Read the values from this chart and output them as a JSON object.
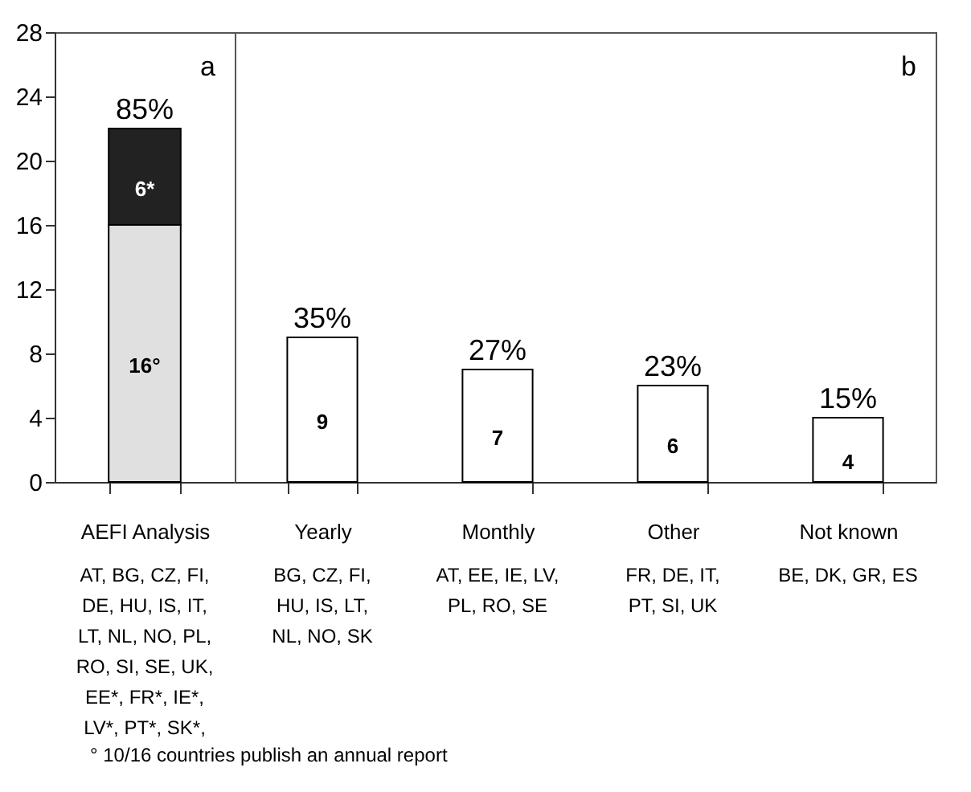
{
  "chart_data": [
    {
      "type": "bar",
      "stacked": true,
      "categories": [
        "AEFI Analysis"
      ],
      "series": [
        {
          "color": "#e0e0e0",
          "values": [
            16
          ],
          "value_labels": [
            "16°"
          ]
        },
        {
          "color": "#222222",
          "values": [
            6
          ],
          "value_labels": [
            "6*"
          ]
        }
      ],
      "ylim": [
        0,
        28
      ],
      "yticks": [
        0,
        4,
        8,
        12,
        16,
        20,
        24,
        28
      ],
      "annotations": [
        "a",
        "AT, BG, CZ, FI,\nDE, HU, IS, IT,\nLT, NL, NO, PL,\nRO, SI, SE, UK,\nEE*, FR*, IE*,\nLV*, PT*, SK*,",
        "° 10/16 countries publish an annual report",
        {
          "text": "85%",
          "x": "AEFI Analysis",
          "y": 22
        }
      ]
    },
    {
      "type": "bar",
      "categories": [
        "Yearly",
        "Monthly",
        "Other",
        "Not known"
      ],
      "values": [
        9,
        7,
        6,
        4
      ],
      "color": "#ffffff",
      "data_labels": true,
      "ylim": [
        0,
        28
      ],
      "tick_labels": "x",
      "annotations": [
        "b",
        "BG, CZ, FI,\nHU, IS, LT,\nNL, NO, SK",
        "AT, EE, IE, LV,\nPL, RO, SE",
        "FR, DE, IT,\nPT, SI, UK",
        "BE, DK, GR, ES",
        {
          "text": "35%",
          "x": "Yearly",
          "y": 9
        },
        {
          "text": "27%",
          "x": "Monthly",
          "y": 7
        },
        {
          "text": "23%",
          "x": "Other",
          "y": 6
        },
        {
          "text": "15%",
          "x": "Not known",
          "y": 4
        }
      ]
    }
  ]
}
